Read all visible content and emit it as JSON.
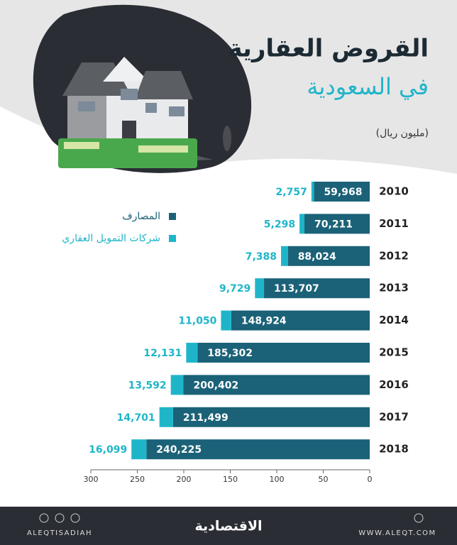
{
  "chart_data": {
    "type": "stacked-bar-horizontal",
    "title": "القروض العقارية",
    "subtitle": "في السعودية",
    "unit": "(مليون ريال)",
    "categories": [
      "2010",
      "2011",
      "2012",
      "2013",
      "2014",
      "2015",
      "2016",
      "2017",
      "2018"
    ],
    "series": [
      {
        "name": "المصارف",
        "color": "#1b6278",
        "values": [
          59.968,
          70.211,
          88.024,
          113.707,
          148.924,
          185.302,
          200.402,
          211.499,
          240.225
        ],
        "value_labels": [
          "59,968",
          "70,211",
          "88,024",
          "113,707",
          "148,924",
          "185,302",
          "200,402",
          "211,499",
          "240,225"
        ]
      },
      {
        "name": "شركات التمويل العقاري",
        "color": "#1fb5c9",
        "values": [
          2.757,
          5.298,
          7.388,
          9.729,
          11.05,
          12.131,
          13.592,
          14.701,
          16.099
        ],
        "value_labels": [
          "2,757",
          "5,298",
          "7,388",
          "9,729",
          "11,050",
          "12,131",
          "13,592",
          "14,701",
          "16,099"
        ]
      }
    ],
    "xlim": [
      0,
      300
    ],
    "xticks": [
      0,
      50,
      100,
      150,
      200,
      250,
      300
    ],
    "x_reversed": true
  },
  "footer": {
    "handle": "ALEQTISADIAH",
    "logo": "الاقتصادية",
    "website": "WWW.ALEQT.COM"
  }
}
